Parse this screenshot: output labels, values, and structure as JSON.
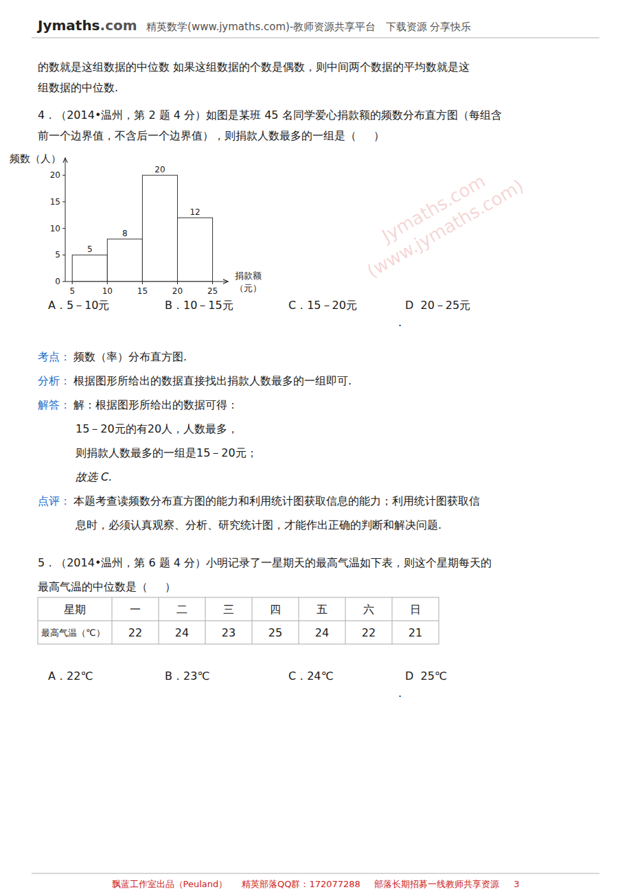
{
  "chart_data": [
    {
      "type": "histogram",
      "bins": [
        5,
        10,
        15,
        20,
        25
      ],
      "values": [
        5,
        8,
        20,
        12
      ],
      "color": "#ffffff",
      "xlim": [
        4,
        27
      ],
      "ylim": [
        0,
        23
      ],
      "xticks": [
        5,
        10,
        15,
        20,
        25
      ],
      "yticks": [
        0,
        5,
        10,
        15,
        20
      ],
      "xlabel": [
        "捐款额",
        "（元）"
      ],
      "ylabel": "频数（人）",
      "data_labels": true,
      "grid": false
    },
    {
      "type": "table",
      "xlabel": "星期",
      "ylabel": "最高气温（℃）",
      "categories": [
        "一",
        "二",
        "三",
        "四",
        "五",
        "六",
        "日"
      ],
      "values": [
        22,
        24,
        23,
        25,
        24,
        22,
        21
      ]
    }
  ],
  "page": {
    "header": [
      "Jymaths",
      ".com",
      "  精英数学(www.jymaths.com)-教师资源共享平台   下载资源 分享快乐"
    ],
    "watermark": [
      "Jymaths.com",
      "(www.jymaths.com)"
    ],
    "lines": [
      "的数就是这组数据的中位数 如果这组数据的个数是偶数，则中间两个数据的平均数就是这",
      "组数据的中位数.",
      "4．（2014•温州，第 2 题 4 分）如图是某班 45 名同学爱心捐款额的频数分布直方图（每组含",
      "前一个边界值，不含后一个边界值），则捐款人数最多的一组是（     ）",
      [
        "A．5－10元",
        "B．10－15元",
        "C．15－20元",
        "D  20－25元"
      ],
      ".",
      [
        "考点：",
        "频数（率）分布直方图."
      ],
      [
        "分析：",
        "根据图形所给出的数据直接找出捐款人数最多的一组即可."
      ],
      [
        "解答：",
        "解：根据图形所给出的数据可得："
      ],
      "15－20元的有20人，人数最多，",
      "则捐款人数最多的一组是15－20元；",
      "故选 C.",
      [
        "点评：",
        "本题考查读频数分布直方图的能力和利用统计图获取信息的能力；利用统计图获取信"
      ],
      "息时，必须认真观察、分析、研究统计图，才能作出正确的判断和解决问题.",
      "5．（2014•温州，第 6 题 4 分）小明记录了一星期天的最高气温如下表，则这个星期每天的",
      "最高气温的中位数是（     ）",
      [
        "A．22℃",
        "B．23℃",
        "C．24℃",
        "D  25℃"
      ],
      "."
    ],
    "footer": "飘蓝工作室出品（Peuland）     精英部落QQ群：172077288     部落长期招募一线教师共享资源     3"
  }
}
